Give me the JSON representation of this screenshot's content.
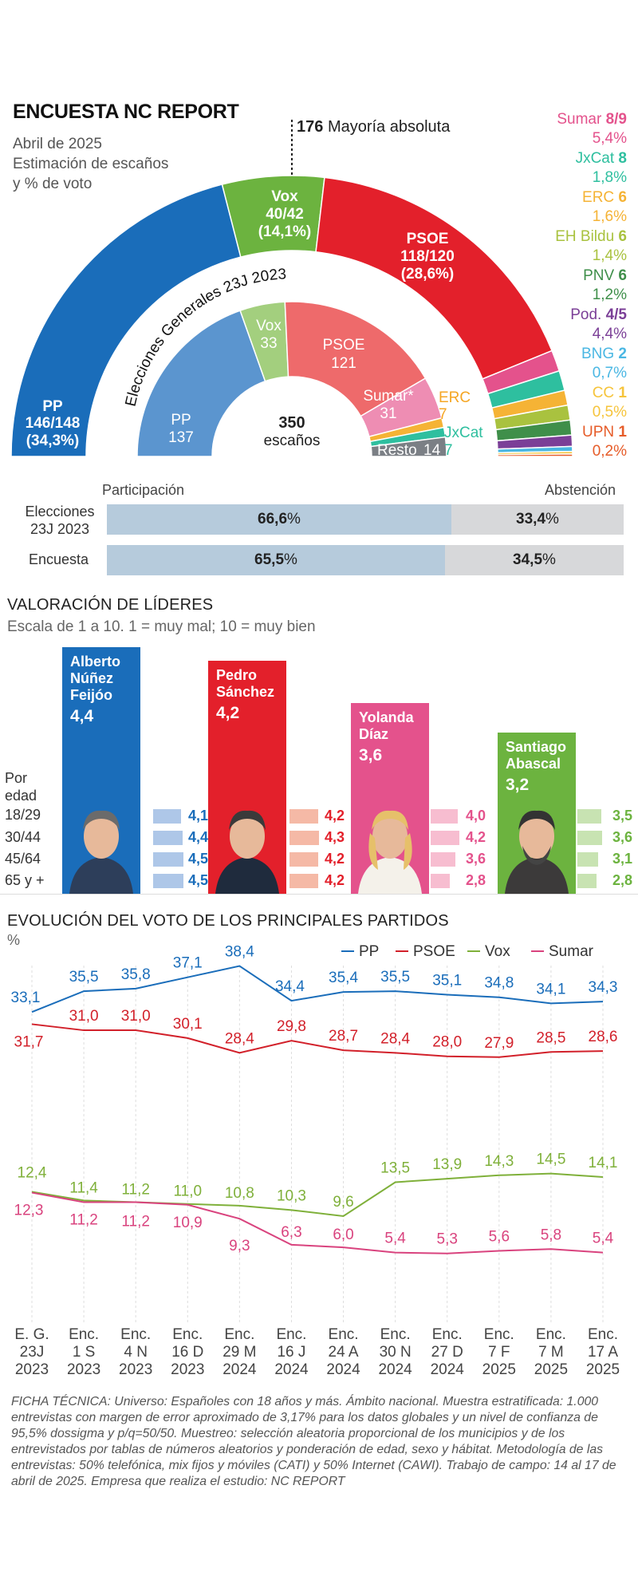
{
  "header": {
    "title": "ENCUESTA NC REPORT",
    "subtitle_lines": [
      "Abril de 2025",
      "Estimación de escaños",
      "y % de voto"
    ],
    "majority_number": "176",
    "majority_text": "Mayoría absoluta"
  },
  "colors": {
    "pp": "#1a6dba",
    "psoe": "#e3202b",
    "vox": "#6cb33f",
    "sumar": "#e4528c",
    "junts": "#2ebf9f",
    "erc": "#f5b335",
    "bildu": "#a9c23f",
    "pnv": "#3f8f4a",
    "podemos": "#7b3f97",
    "bng": "#4ab7e3",
    "cc": "#f6c43b",
    "upn": "#e65c29",
    "resto": "#7b7f85"
  },
  "hemicycle_outer": {
    "pp": {
      "name": "PP",
      "seats": "146/148",
      "pct": "(34,3%)"
    },
    "vox": {
      "name": "Vox",
      "seats": "40/42",
      "pct": "(14,1%)"
    },
    "psoe": {
      "name": "PSOE",
      "seats": "118/120",
      "pct": "(28,6%)"
    }
  },
  "hemicycle_inner": {
    "caption": "Elecciones Generales 23J 2023",
    "total_number": "350",
    "total_label": "escaños",
    "pp": {
      "name": "PP",
      "seats": "137"
    },
    "vox": {
      "name": "Vox",
      "seats": "33"
    },
    "psoe": {
      "name": "PSOE",
      "seats": "121"
    },
    "sumar": {
      "name": "Sumar*",
      "seats": "31"
    },
    "erc": {
      "name": "ERC",
      "seats": "7"
    },
    "jxcat": {
      "name": "JxCat",
      "seats": "7"
    },
    "resto": {
      "name": "Resto",
      "seats": "14"
    }
  },
  "small_parties": [
    {
      "name": "Sumar",
      "seats": "8/9",
      "pct": "5,4%",
      "color": "#e4528c"
    },
    {
      "name": "JxCat",
      "seats": "8",
      "pct": "1,8%",
      "color": "#2ebf9f"
    },
    {
      "name": "ERC",
      "seats": "6",
      "pct": "1,6%",
      "color": "#f5b335"
    },
    {
      "name": "EH Bildu",
      "seats": "6",
      "pct": "1,4%",
      "color": "#a9c23f"
    },
    {
      "name": "PNV",
      "seats": "6",
      "pct": "1,2%",
      "color": "#3f8f4a"
    },
    {
      "name": "Pod.",
      "seats": "4/5",
      "pct": "4,4%",
      "color": "#7b3f97"
    },
    {
      "name": "BNG",
      "seats": "2",
      "pct": "0,7%",
      "color": "#4ab7e3"
    },
    {
      "name": "CC",
      "seats": "1",
      "pct": "0,5%",
      "color": "#f6c43b"
    },
    {
      "name": "UPN",
      "seats": "1",
      "pct": "0,2%",
      "color": "#e65c29"
    }
  ],
  "participation": {
    "head_left": "Participación",
    "head_right": "Abstención",
    "rows": [
      {
        "label_lines": [
          "Elecciones",
          "23J 2023"
        ],
        "part": 66.6,
        "part_num": "66,6",
        "abst_num": "33,4",
        "unit": "%"
      },
      {
        "label_lines": [
          "Encuesta"
        ],
        "part": 65.5,
        "part_num": "65,5",
        "abst_num": "34,5",
        "unit": "%"
      }
    ]
  },
  "leaders": {
    "title": "VALORACIÓN DE LÍDERES",
    "subtitle": "Escala de 1 a 10. 1 = muy mal; 10 = muy bien",
    "age_title_lines": [
      "Por",
      "edad"
    ],
    "age_groups": [
      "18/29",
      "30/44",
      "45/64",
      "65 y +"
    ],
    "people": [
      {
        "name_lines": [
          "Alberto",
          "Núñez",
          "Feijóo"
        ],
        "score": "4,4",
        "score_val": 4.4,
        "color": "#1a6dba",
        "light": "#aec7e8",
        "ages": [
          "4,1",
          "4,4",
          "4,5",
          "4,5"
        ],
        "age_vals": [
          4.1,
          4.4,
          4.5,
          4.5
        ]
      },
      {
        "name_lines": [
          "Pedro",
          "Sánchez"
        ],
        "score": "4,2",
        "score_val": 4.2,
        "color": "#e3202b",
        "light": "#f5b9a6",
        "ages": [
          "4,2",
          "4,3",
          "4,2",
          "4,2"
        ],
        "age_vals": [
          4.2,
          4.3,
          4.2,
          4.2
        ]
      },
      {
        "name_lines": [
          "Yolanda",
          "Díaz"
        ],
        "score": "3,6",
        "score_val": 3.6,
        "color": "#e4528c",
        "light": "#f7bdd0",
        "ages": [
          "4,0",
          "4,2",
          "3,6",
          "2,8"
        ],
        "age_vals": [
          4.0,
          4.2,
          3.6,
          2.8
        ]
      },
      {
        "name_lines": [
          "Santiago",
          "Abascal"
        ],
        "score": "3,2",
        "score_val": 3.2,
        "color": "#6cb33f",
        "light": "#c8e3b2",
        "ages": [
          "3,5",
          "3,6",
          "3,1",
          "2,8"
        ],
        "age_vals": [
          3.5,
          3.6,
          3.1,
          2.8
        ]
      }
    ]
  },
  "chart_data": {
    "type": "line",
    "title": "EVOLUCIÓN DEL VOTO DE LOS PRINCIPALES PARTIDOS",
    "ylabel": "%",
    "categories": [
      [
        "E. G.",
        "23J",
        "2023"
      ],
      [
        "Enc.",
        "1 S",
        "2023"
      ],
      [
        "Enc.",
        "4 N",
        "2023"
      ],
      [
        "Enc.",
        "16 D",
        "2023"
      ],
      [
        "Enc.",
        "29 M",
        "2024"
      ],
      [
        "Enc.",
        "16 J",
        "2024"
      ],
      [
        "Enc.",
        "24 A",
        "2024"
      ],
      [
        "Enc.",
        "30 N",
        "2024"
      ],
      [
        "Enc.",
        "27 D",
        "2024"
      ],
      [
        "Enc.",
        "7 F",
        "2025"
      ],
      [
        "Enc.",
        "7 M",
        "2025"
      ],
      [
        "Enc.",
        "17 A",
        "2025"
      ]
    ],
    "series": [
      {
        "name": "PP",
        "color": "#1a6dba",
        "values": [
          33.1,
          35.5,
          35.8,
          37.1,
          38.4,
          34.4,
          35.4,
          35.5,
          35.1,
          34.8,
          34.1,
          34.3
        ],
        "labels": [
          "33,1",
          "35,5",
          "35,8",
          "37,1",
          "38,4",
          "34,4",
          "35,4",
          "35,5",
          "35,1",
          "34,8",
          "34,1",
          "34,3"
        ]
      },
      {
        "name": "PSOE",
        "color": "#d2202a",
        "values": [
          31.7,
          31.0,
          31.0,
          30.1,
          28.4,
          29.8,
          28.7,
          28.4,
          28.0,
          27.9,
          28.5,
          28.6
        ],
        "labels": [
          "31,7",
          "31,0",
          "31,0",
          "30,1",
          "28,4",
          "29,8",
          "28,7",
          "28,4",
          "28,0",
          "27,9",
          "28,5",
          "28,6"
        ]
      },
      {
        "name": "Vox",
        "color": "#7fb03a",
        "values": [
          12.4,
          11.4,
          11.2,
          11.0,
          10.8,
          10.3,
          9.6,
          13.5,
          13.9,
          14.3,
          14.5,
          14.1
        ],
        "labels": [
          "12,4",
          "11,4",
          "11,2",
          "11,0",
          "10,8",
          "10,3",
          "9,6",
          "13,5",
          "13,9",
          "14,3",
          "14,5",
          "14,1"
        ]
      },
      {
        "name": "Sumar",
        "color": "#d9437e",
        "values": [
          12.3,
          11.2,
          11.2,
          10.9,
          9.3,
          6.3,
          6.0,
          5.4,
          5.3,
          5.6,
          5.8,
          5.4
        ],
        "labels": [
          "12,3",
          "11,2",
          "11,2",
          "10,9",
          "9,3",
          "6,3",
          "6,0",
          "5,4",
          "5,3",
          "5,6",
          "5,8",
          "5,4"
        ]
      }
    ]
  },
  "ficha": "FICHA TÉCNICA: Universo: Españoles con 18 años y más. Ámbito nacional. Muestra estratificada: 1.000 entrevistas con margen de error aproximado de 3,17% para los datos globales y un nivel de confianza de 95,5% dossigma y p/q=50/50. Muestreo: selección aleatoria proporcional de los municipios y de los entrevistados por tablas de números aleatorios y ponderación de edad, sexo y hábitat. Metodología de las entrevistas: 50% telefónica, mix fijos y móviles (CATI) y 50% Internet (CAWI). Trabajo de campo: 14 al 17 de abril de 2025. Empresa que realiza el estudio: NC REPORT"
}
